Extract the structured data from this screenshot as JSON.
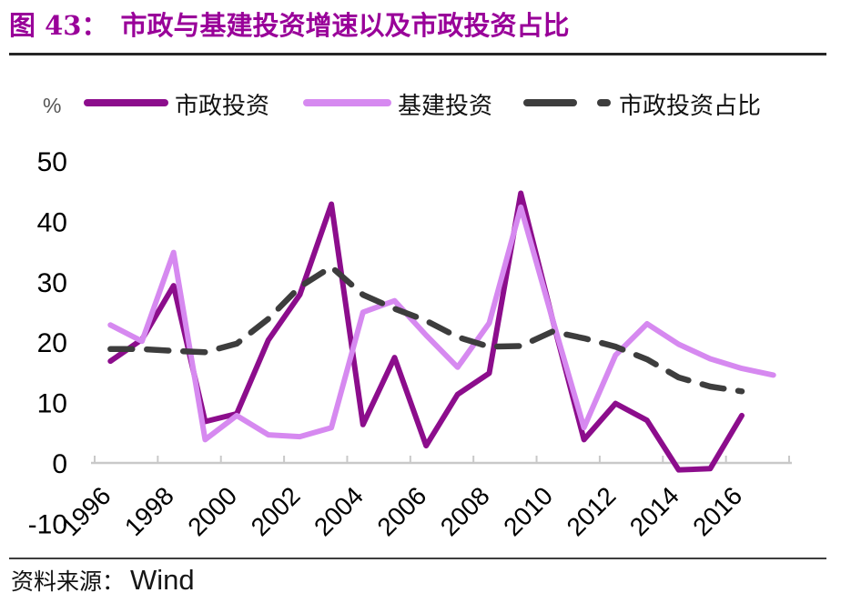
{
  "page": {
    "title_prefix": "图 43：",
    "title": "市政与基建投资增速以及市政投资占比",
    "unit_label": "%",
    "source_label": "资料来源：",
    "source_value": "Wind"
  },
  "legend": {
    "items": [
      {
        "label": "市政投资",
        "color": "#8C0D8C",
        "dashed": false
      },
      {
        "label": "基建投资",
        "color": "#D689F0",
        "dashed": false
      },
      {
        "label": "市政投资占比",
        "color": "#3D3D3D",
        "dashed": true
      }
    ]
  },
  "colors": {
    "title": "#990099",
    "divider_top": "#262626",
    "divider_bottom": "#3D3D3D",
    "axis_line": "#C9C9C9",
    "tick_text": "#000000",
    "unit_text": "#555555"
  },
  "chart_data": {
    "type": "line",
    "title": "市政与基建投资增速以及市政投资占比",
    "ylabel": "%",
    "ylim": [
      -10,
      50
    ],
    "y_ticks": [
      50,
      40,
      30,
      20,
      10,
      0,
      -10
    ],
    "grid": false,
    "legend_position": "top",
    "x": [
      1996,
      1997,
      1998,
      1999,
      2000,
      2001,
      2002,
      2003,
      2004,
      2005,
      2006,
      2007,
      2008,
      2009,
      2010,
      2011,
      2012,
      2013,
      2014,
      2015,
      2016,
      2017
    ],
    "x_tick_labels": [
      "1996",
      "1998",
      "2000",
      "2002",
      "2004",
      "2006",
      "2008",
      "2010",
      "2012",
      "2014",
      "2016"
    ],
    "series": [
      {
        "name": "市政投资",
        "color": "#8C0D8C",
        "dashed": false,
        "values": [
          17,
          20.6,
          29.5,
          7,
          8.3,
          20.5,
          28,
          43,
          6.5,
          17.6,
          3,
          11.5,
          15,
          44.8,
          24,
          4,
          10,
          7.2,
          -1,
          -0.8,
          8,
          null
        ]
      },
      {
        "name": "基建投资",
        "color": "#D689F0",
        "dashed": false,
        "values": [
          23,
          20.3,
          35,
          4,
          8,
          4.8,
          4.5,
          6,
          25.1,
          27,
          21.3,
          16,
          23.3,
          42.5,
          24,
          6,
          18,
          23.2,
          19.8,
          17.4,
          15.8,
          14.7
        ]
      },
      {
        "name": "市政投资占比",
        "color": "#3D3D3D",
        "dashed": true,
        "values": [
          19,
          19,
          18.7,
          18.5,
          19.9,
          24,
          29.3,
          32.6,
          28,
          25.7,
          23.7,
          21,
          19.4,
          19.5,
          21.9,
          20.8,
          19.4,
          17.3,
          14.3,
          12.8,
          12,
          null
        ]
      }
    ]
  }
}
